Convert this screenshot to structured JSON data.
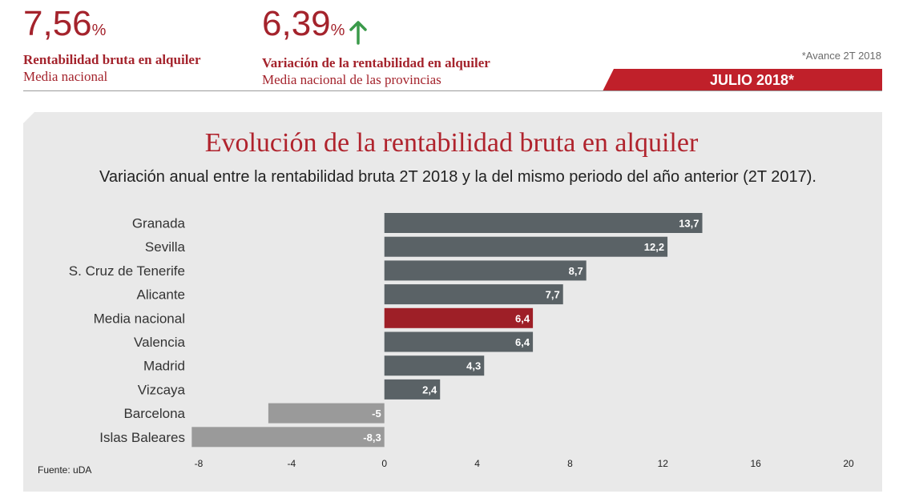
{
  "header": {
    "kpi1": {
      "value": "7,56",
      "unit": "%",
      "title": "Rentabilidad bruta en alquiler",
      "subtitle": "Media nacional"
    },
    "kpi2": {
      "value": "6,39",
      "unit": "%",
      "title": "Variación de la rentabilidad en alquiler",
      "subtitle": "Media nacional de las provincias",
      "trend_icon": "arrow-up-icon"
    },
    "note": "*Avance 2T 2018",
    "date_label": "JULIO 2018*"
  },
  "colors": {
    "brand_red": "#a4232c",
    "bar_default": "#5a6266",
    "bar_highlight": "#9e1f27",
    "bar_negative": "#9a9a9a",
    "trend_up": "#3a9a4a"
  },
  "chart_data": {
    "type": "bar",
    "orientation": "horizontal",
    "title": "Evolución de la rentabilidad bruta en alquiler",
    "subtitle": "Variación anual entre la rentabilidad bruta 2T 2018 y la del mismo periodo del año anterior (2T 2017).",
    "categories": [
      "Granada",
      "Sevilla",
      "S. Cruz de Tenerife",
      "Alicante",
      "Media nacional",
      "Valencia",
      "Madrid",
      "Vizcaya",
      "Barcelona",
      "Islas Baleares"
    ],
    "values": [
      13.7,
      12.2,
      8.7,
      7.7,
      6.4,
      6.4,
      4.3,
      2.4,
      -5,
      -8.3
    ],
    "value_labels": [
      "13,7",
      "12,2",
      "8,7",
      "7,7",
      "6,4",
      "6,4",
      "4,3",
      "2,4",
      "-5",
      "-8,3"
    ],
    "highlight": "Media nacional",
    "xlim": [
      -8,
      20
    ],
    "xticks": [
      -8,
      -4,
      0,
      4,
      8,
      12,
      16,
      20
    ],
    "xtick_labels": [
      "-8",
      "-4",
      "0",
      "4",
      "8",
      "12",
      "16",
      "20"
    ],
    "grid": false,
    "source": "Fuente: uDA"
  }
}
